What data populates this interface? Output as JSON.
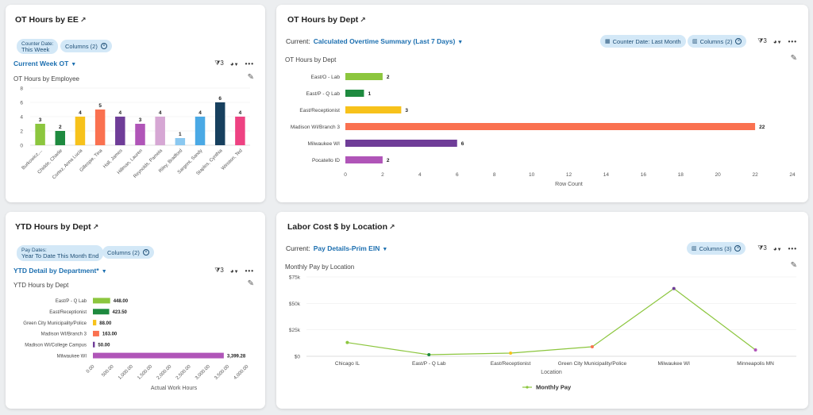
{
  "colors": {
    "green": "#8cc63e",
    "dkgreen": "#1e8a3f",
    "yellow": "#f7c21b",
    "orange": "#fa7150",
    "purple": "#6f3d98",
    "violet": "#b055b8",
    "pink": "#d6a7d4",
    "lightblue": "#8ac8f0",
    "blue": "#4aa9e5",
    "navy": "#17405e",
    "magenta": "#ee4282",
    "linegreen": "#8cc63e"
  },
  "ee": {
    "title": "OT Hours by EE",
    "pill_counter_label": "Counter Date:",
    "pill_counter_value": "This Week",
    "pill_columns": "Columns (2)",
    "view": "Current Week OT",
    "filter_count": "3",
    "subtitle": "OT Hours by Employee",
    "chart_data": {
      "type": "bar",
      "categories": [
        "Burkowicz,...",
        "Chidde, Charlie",
        "Cortez, Anna Lucia",
        "Gillespie, Tina",
        "Hall, James",
        "Hillman, Lauren",
        "Reynolds, Pamela",
        "Riley, Bradford",
        "Sargent, Sandy",
        "Staples, Cynthia",
        "Winston, Ted"
      ],
      "values": [
        3,
        2,
        4,
        5,
        4,
        3,
        4,
        1,
        4,
        6,
        4
      ],
      "value_labels": [
        "3",
        "2",
        "4",
        "5",
        "4",
        "3",
        "4",
        "1",
        "4",
        "6",
        "4"
      ],
      "colors": [
        "#8cc63e",
        "#1e8a3f",
        "#f7c21b",
        "#fa7150",
        "#6f3d98",
        "#b055b8",
        "#d6a7d4",
        "#8ac8f0",
        "#4aa9e5",
        "#17405e",
        "#ee4282"
      ],
      "yticks": [
        "0",
        "2",
        "4",
        "6",
        "8"
      ],
      "ylim": [
        0,
        8
      ]
    }
  },
  "dept": {
    "title": "OT Hours by Dept",
    "current_label": "Current:",
    "view": "Calculated Overtime Summary (Last 7 Days)",
    "pill_counter": "Counter Date: Last Month",
    "pill_columns": "Columns (2)",
    "filter_count": "3",
    "subtitle": "OT Hours by Dept",
    "chart_data": {
      "type": "bar",
      "orientation": "horizontal",
      "categories": [
        "East/O - Lab",
        "East/P - Q Lab",
        "East/Receptionist",
        "Madison WI/Branch 3",
        "Milwaukee WI",
        "Pocatello ID"
      ],
      "values": [
        2,
        1,
        3,
        22,
        6,
        2
      ],
      "value_labels": [
        "2",
        "1",
        "3",
        "22",
        "6",
        "2"
      ],
      "colors": [
        "#8cc63e",
        "#1e8a3f",
        "#f7c21b",
        "#fa7150",
        "#6f3d98",
        "#b055b8"
      ],
      "xticks": [
        "0",
        "2",
        "4",
        "6",
        "8",
        "10",
        "12",
        "14",
        "16",
        "18",
        "20",
        "22",
        "24"
      ],
      "xlim": [
        0,
        24
      ],
      "xlabel": "Row Count"
    }
  },
  "ytd": {
    "title": "YTD Hours by Dept",
    "pill_pay_label": "Pay Dates:",
    "pill_pay_value": "Year To Date This Month End",
    "pill_columns": "Columns (2)",
    "view": "YTD Detail by Department*",
    "filter_count": "3",
    "subtitle": "YTD Hours by Dept",
    "chart_data": {
      "type": "bar",
      "orientation": "horizontal",
      "categories": [
        "East/P - Q Lab",
        "East/Receptionist",
        "Green City Municipality/Police",
        "Madison WI/Branch 3",
        "Madison WI/College Campus",
        "Milwaukee WI"
      ],
      "values": [
        448.0,
        423.5,
        88.0,
        163.0,
        50.0,
        3399.28
      ],
      "value_labels": [
        "448.00",
        "423.50",
        "88.00",
        "163.00",
        "50.00",
        "3,399.28"
      ],
      "colors": [
        "#8cc63e",
        "#1e8a3f",
        "#f7c21b",
        "#fa7150",
        "#6f3d98",
        "#b055b8"
      ],
      "xticks": [
        "0.00",
        "500.00",
        "1,000.00",
        "1,500.00",
        "2,000.00",
        "2,500.00",
        "3,000.00",
        "3,500.00",
        "4,000.00"
      ],
      "xlim": [
        0,
        4000
      ],
      "xlabel": "Actual Work Hours"
    }
  },
  "labor": {
    "title": "Labor Cost $ by Location",
    "current_label": "Current:",
    "view": "Pay Details-Prim EIN",
    "pill_columns": "Columns (3)",
    "filter_count": "3",
    "subtitle": "Monthly Pay by Location",
    "chart_data": {
      "type": "line",
      "categories": [
        "Chicago IL",
        "East/P - Q Lab",
        "East/Receptionist",
        "Green City Municipality/Police",
        "Milwaukee WI",
        "Minneapolis MN"
      ],
      "series": [
        {
          "name": "Monthly Pay",
          "values": [
            13000,
            1500,
            3000,
            9000,
            64000,
            6000
          ]
        }
      ],
      "point_colors": [
        "#8cc63e",
        "#1e8a3f",
        "#f7c21b",
        "#fa7150",
        "#6f3d98",
        "#b055b8"
      ],
      "yticks": [
        "$0",
        "$25k",
        "$50k",
        "$75k"
      ],
      "ylim": [
        0,
        75000
      ],
      "xlabel": "Location",
      "legend": "Monthly Pay"
    }
  }
}
